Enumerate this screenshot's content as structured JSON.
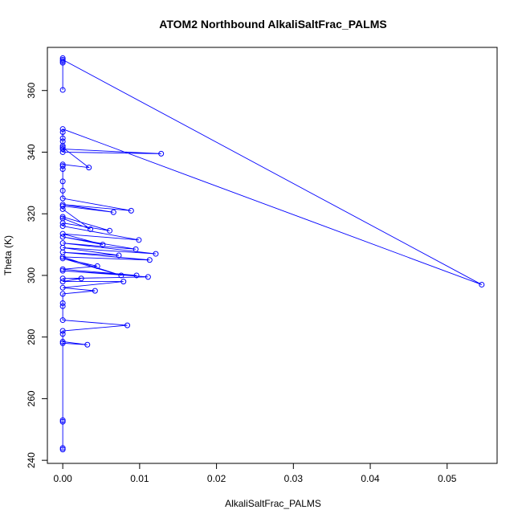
{
  "chart_data": {
    "type": "line",
    "title": "ATOM2 Northbound AlkaliSaltFrac_PALMS",
    "xlabel": "AlkaliSaltFrac_PALMS",
    "ylabel": "Theta (K)",
    "xlim": [
      -0.002,
      0.0565
    ],
    "ylim": [
      239,
      374
    ],
    "xticks": [
      0.0,
      0.01,
      0.02,
      0.03,
      0.04,
      0.05
    ],
    "xtick_labels": [
      "0.00",
      "0.01",
      "0.02",
      "0.03",
      "0.04",
      "0.05"
    ],
    "yticks": [
      240,
      260,
      280,
      300,
      320,
      340,
      360
    ],
    "ytick_labels": [
      "240",
      "260",
      "280",
      "300",
      "320",
      "340",
      "360"
    ],
    "grid": false,
    "color": "#0000ff",
    "marker": "open-circle",
    "series": [
      {
        "x": [
          0.0,
          0.0,
          0.0,
          0.0,
          0.0,
          0.0545,
          0.0,
          0.0,
          0.0,
          0.0128,
          0.0,
          0.0,
          0.0,
          0.0,
          0.0,
          0.0034,
          0.0,
          0.0,
          0.0,
          0.0,
          0.0,
          0.0,
          0.0089,
          0.0,
          0.0066,
          0.0,
          0.0,
          0.0036,
          0.0,
          0.0,
          0.0061,
          0.0,
          0.0,
          0.0099,
          0.0,
          0.0052,
          0.0,
          0.0095,
          0.0,
          0.0121,
          0.0,
          0.0073,
          0.0,
          0.0113,
          0.0,
          0.0076,
          0.0,
          0.0045,
          0.0,
          0.0096,
          0.0,
          0.0111,
          0.0,
          0.0024,
          0.0,
          0.0079,
          0.0,
          0.0042,
          0.0,
          0.0,
          0.0,
          0.0,
          0.0084,
          0.0,
          0.0,
          0.0,
          0.0032,
          0.0,
          0.0,
          0.0,
          0.0,
          0.0
        ],
        "y": [
          370.5,
          369.5,
          369.0,
          360.2,
          370.0,
          297.0,
          347.5,
          346.5,
          341.0,
          339.5,
          340.0,
          344.5,
          343.5,
          342.0,
          341.5,
          335.0,
          336.0,
          335.5,
          334.5,
          330.5,
          327.5,
          325.0,
          321.0,
          323.0,
          320.5,
          322.5,
          321.5,
          315.0,
          318.5,
          319.0,
          314.5,
          317.0,
          316.0,
          311.5,
          313.5,
          310.0,
          312.5,
          308.5,
          310.5,
          307.0,
          309.0,
          306.5,
          307.5,
          305.0,
          306.0,
          300.0,
          305.5,
          303.0,
          302.0,
          300.0,
          301.5,
          299.5,
          299.0,
          299.0,
          298.0,
          298.0,
          296.0,
          295.0,
          294.0,
          291.0,
          290.0,
          285.5,
          283.8,
          282.0,
          281.0,
          278.0,
          277.5,
          278.5,
          253.0,
          252.5,
          243.5,
          244.0
        ]
      }
    ]
  }
}
